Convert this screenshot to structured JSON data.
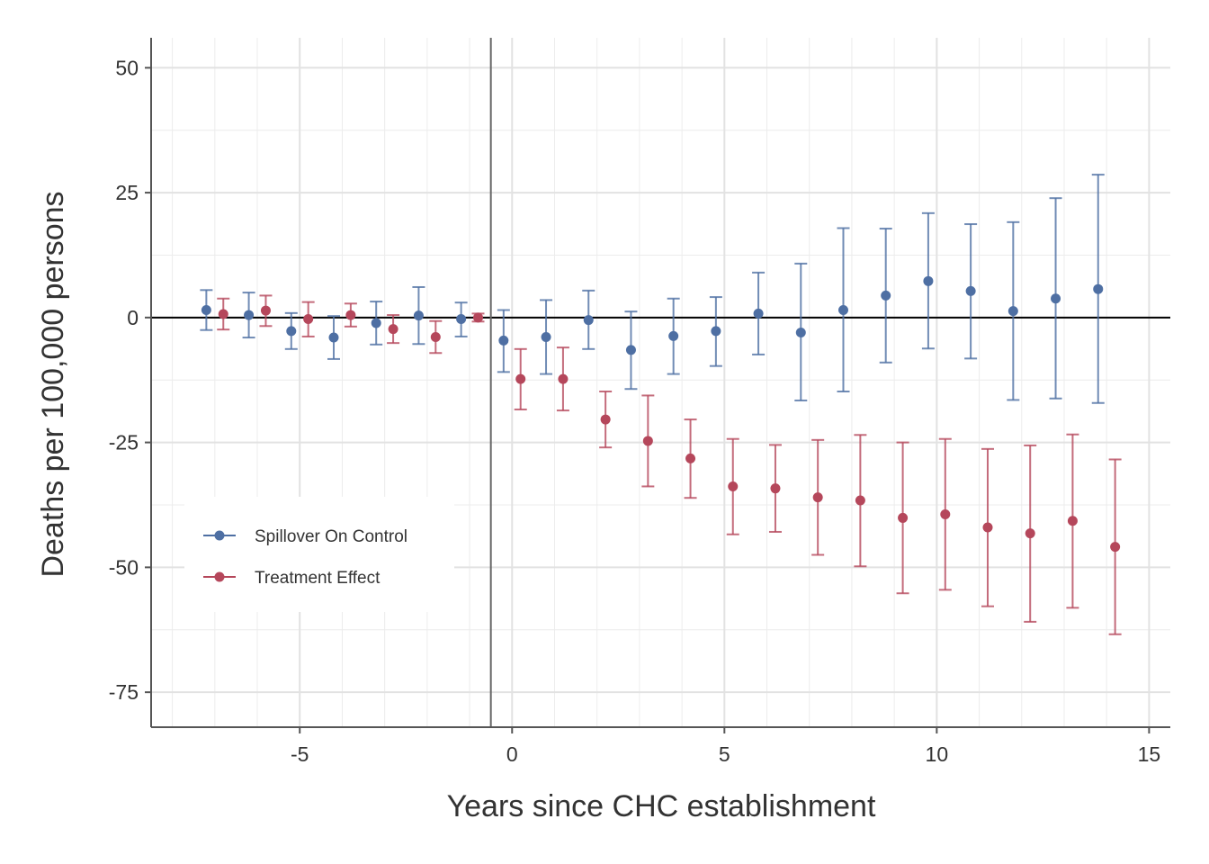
{
  "chart_data": {
    "type": "scatter",
    "title": "",
    "xlabel": "Years since CHC establishment",
    "ylabel": "Deaths per 100,000 persons",
    "xlim": [
      -8.5,
      15.5
    ],
    "ylim": [
      -82,
      56
    ],
    "x_ticks": [
      -5,
      0,
      5,
      10,
      15
    ],
    "x_tick_labels": [
      "-5",
      "0",
      "5",
      "10",
      "15"
    ],
    "y_ticks": [
      50,
      25,
      0,
      -25,
      -50,
      -75
    ],
    "y_tick_labels": [
      "50",
      "25",
      "0",
      "-25",
      "-50",
      "-75"
    ],
    "grid": true,
    "reference_lines": {
      "horizontal_y": 0,
      "vertical_x": -0.5
    },
    "legend_position": "bottom-left",
    "series": [
      {
        "name": "Spillover On Control",
        "color": "#4e6fa3",
        "points": [
          {
            "x": -7.2,
            "y": 1.5,
            "lo": -2.5,
            "hi": 5.5
          },
          {
            "x": -6.2,
            "y": 0.5,
            "lo": -4.0,
            "hi": 5.0
          },
          {
            "x": -5.2,
            "y": -2.7,
            "lo": -6.3,
            "hi": 0.9
          },
          {
            "x": -4.2,
            "y": -4.0,
            "lo": -8.3,
            "hi": 0.3
          },
          {
            "x": -3.2,
            "y": -1.1,
            "lo": -5.4,
            "hi": 3.2
          },
          {
            "x": -2.2,
            "y": 0.4,
            "lo": -5.3,
            "hi": 6.1
          },
          {
            "x": -1.2,
            "y": -0.3,
            "lo": -3.8,
            "hi": 3.0
          },
          {
            "x": -0.2,
            "y": -4.6,
            "lo": -10.9,
            "hi": 1.5
          },
          {
            "x": 0.8,
            "y": -3.9,
            "lo": -11.3,
            "hi": 3.5
          },
          {
            "x": 1.8,
            "y": -0.5,
            "lo": -6.3,
            "hi": 5.4
          },
          {
            "x": 2.8,
            "y": -6.5,
            "lo": -14.3,
            "hi": 1.2
          },
          {
            "x": 3.8,
            "y": -3.7,
            "lo": -11.3,
            "hi": 3.8
          },
          {
            "x": 4.8,
            "y": -2.7,
            "lo": -9.7,
            "hi": 4.1
          },
          {
            "x": 5.8,
            "y": 0.8,
            "lo": -7.4,
            "hi": 9.0
          },
          {
            "x": 6.8,
            "y": -3.0,
            "lo": -16.6,
            "hi": 10.8
          },
          {
            "x": 7.8,
            "y": 1.5,
            "lo": -14.8,
            "hi": 17.9
          },
          {
            "x": 8.8,
            "y": 4.4,
            "lo": -9.0,
            "hi": 17.8
          },
          {
            "x": 9.8,
            "y": 7.3,
            "lo": -6.2,
            "hi": 20.9
          },
          {
            "x": 10.8,
            "y": 5.3,
            "lo": -8.2,
            "hi": 18.7
          },
          {
            "x": 11.8,
            "y": 1.3,
            "lo": -16.5,
            "hi": 19.1
          },
          {
            "x": 12.8,
            "y": 3.8,
            "lo": -16.2,
            "hi": 23.9
          },
          {
            "x": 13.8,
            "y": 5.7,
            "lo": -17.1,
            "hi": 28.6
          }
        ]
      },
      {
        "name": "Treatment Effect",
        "color": "#b5475b",
        "points": [
          {
            "x": -6.8,
            "y": 0.7,
            "lo": -2.4,
            "hi": 3.8
          },
          {
            "x": -5.8,
            "y": 1.4,
            "lo": -1.7,
            "hi": 4.4
          },
          {
            "x": -4.8,
            "y": -0.3,
            "lo": -3.8,
            "hi": 3.1
          },
          {
            "x": -3.8,
            "y": 0.5,
            "lo": -1.8,
            "hi": 2.8
          },
          {
            "x": -2.8,
            "y": -2.3,
            "lo": -5.1,
            "hi": 0.5
          },
          {
            "x": -1.8,
            "y": -3.9,
            "lo": -7.1,
            "hi": -0.7
          },
          {
            "x": -0.8,
            "y": 0.0,
            "lo": -0.8,
            "hi": 0.8
          },
          {
            "x": 0.2,
            "y": -12.3,
            "lo": -18.4,
            "hi": -6.3
          },
          {
            "x": 1.2,
            "y": -12.3,
            "lo": -18.6,
            "hi": -6.0
          },
          {
            "x": 2.2,
            "y": -20.4,
            "lo": -26.0,
            "hi": -14.8
          },
          {
            "x": 3.2,
            "y": -24.7,
            "lo": -33.8,
            "hi": -15.6
          },
          {
            "x": 4.2,
            "y": -28.2,
            "lo": -36.1,
            "hi": -20.4
          },
          {
            "x": 5.2,
            "y": -33.8,
            "lo": -43.4,
            "hi": -24.3
          },
          {
            "x": 6.2,
            "y": -34.2,
            "lo": -42.9,
            "hi": -25.5
          },
          {
            "x": 7.2,
            "y": -36.0,
            "lo": -47.5,
            "hi": -24.5
          },
          {
            "x": 8.2,
            "y": -36.6,
            "lo": -49.8,
            "hi": -23.5
          },
          {
            "x": 9.2,
            "y": -40.1,
            "lo": -55.2,
            "hi": -25.0
          },
          {
            "x": 10.2,
            "y": -39.4,
            "lo": -54.5,
            "hi": -24.3
          },
          {
            "x": 11.2,
            "y": -42.0,
            "lo": -57.8,
            "hi": -26.3
          },
          {
            "x": 12.2,
            "y": -43.2,
            "lo": -60.9,
            "hi": -25.6
          },
          {
            "x": 13.2,
            "y": -40.7,
            "lo": -58.1,
            "hi": -23.4
          },
          {
            "x": 14.2,
            "y": -45.9,
            "lo": -63.4,
            "hi": -28.4
          }
        ]
      }
    ]
  }
}
